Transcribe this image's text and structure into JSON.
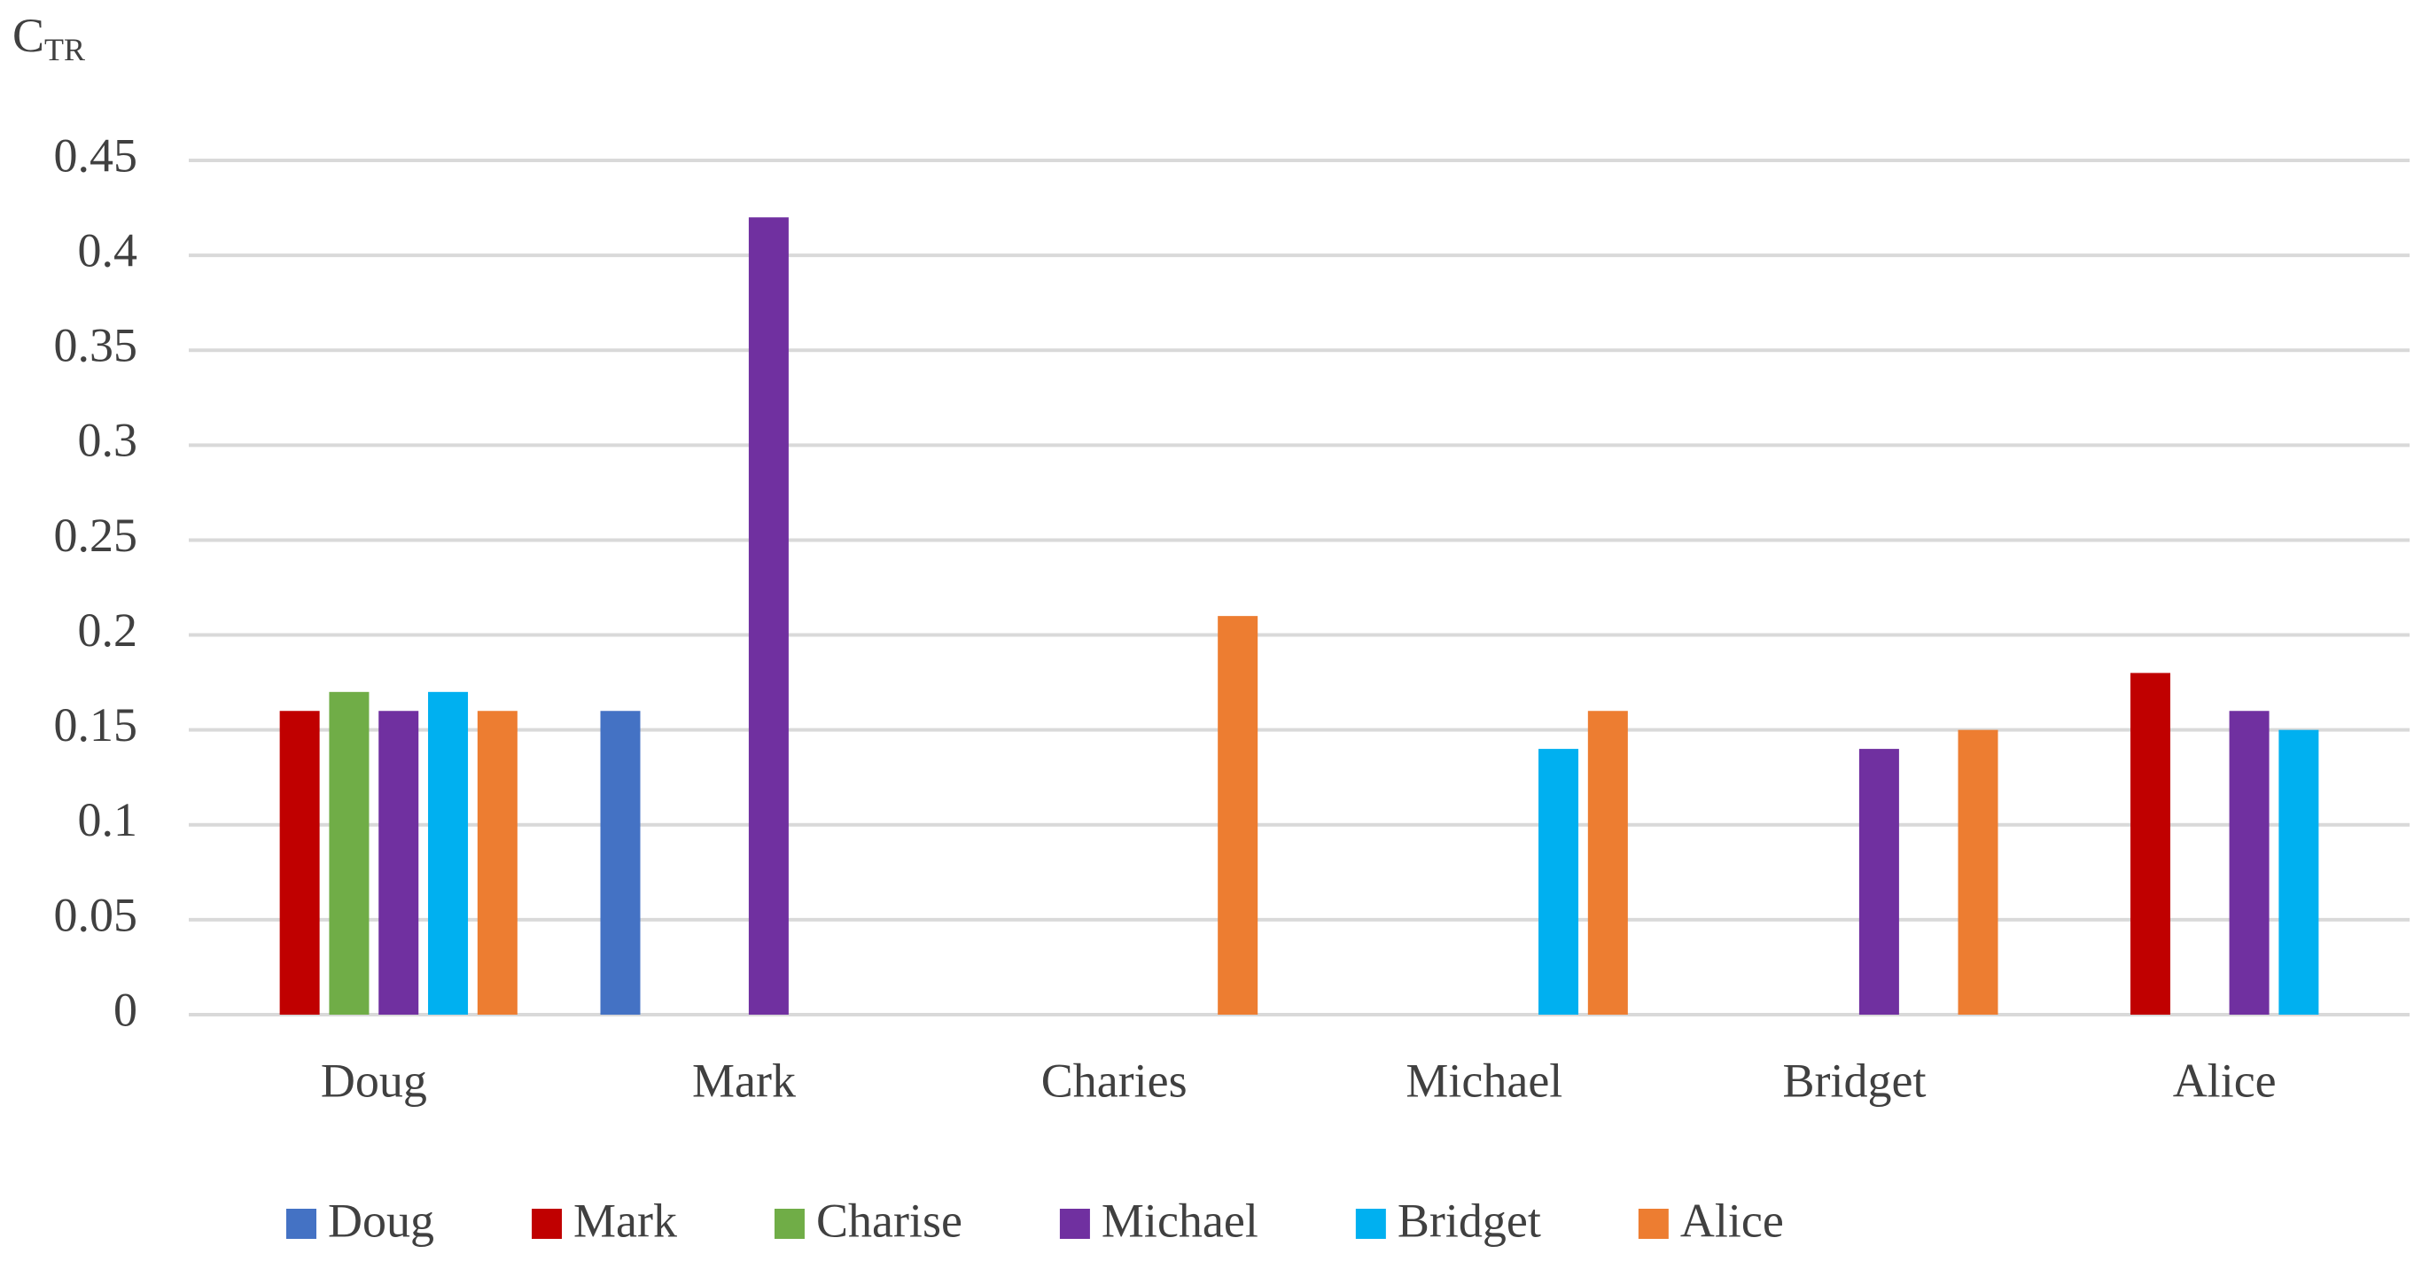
{
  "chart_data": {
    "type": "bar",
    "y_label": {
      "main": "C",
      "sub": "TR"
    },
    "categories": [
      "Doug",
      "Mark",
      "Charies",
      "Michael",
      "Bridget",
      "Alice"
    ],
    "series": [
      {
        "name": "Doug",
        "color": "#4472c4",
        "values": [
          null,
          0.16,
          null,
          null,
          null,
          null
        ]
      },
      {
        "name": "Mark",
        "color": "#c00000",
        "values": [
          0.16,
          null,
          null,
          null,
          null,
          0.18
        ]
      },
      {
        "name": "Charise",
        "color": "#70ad47",
        "values": [
          0.17,
          null,
          null,
          null,
          null,
          null
        ]
      },
      {
        "name": "Michael",
        "color": "#7030a0",
        "values": [
          0.16,
          0.42,
          null,
          null,
          0.14,
          0.16
        ]
      },
      {
        "name": "Bridget",
        "color": "#00b0f0",
        "values": [
          0.17,
          null,
          null,
          0.14,
          null,
          0.15
        ]
      },
      {
        "name": "Alice",
        "color": "#ed7d31",
        "values": [
          0.16,
          null,
          0.21,
          0.16,
          0.15,
          null
        ]
      }
    ],
    "ylim": [
      0,
      0.45
    ],
    "yticks": [
      0,
      0.05,
      0.1,
      0.15,
      0.2,
      0.25,
      0.3,
      0.35,
      0.4,
      0.45
    ],
    "grid": true,
    "legend": "bottom"
  }
}
